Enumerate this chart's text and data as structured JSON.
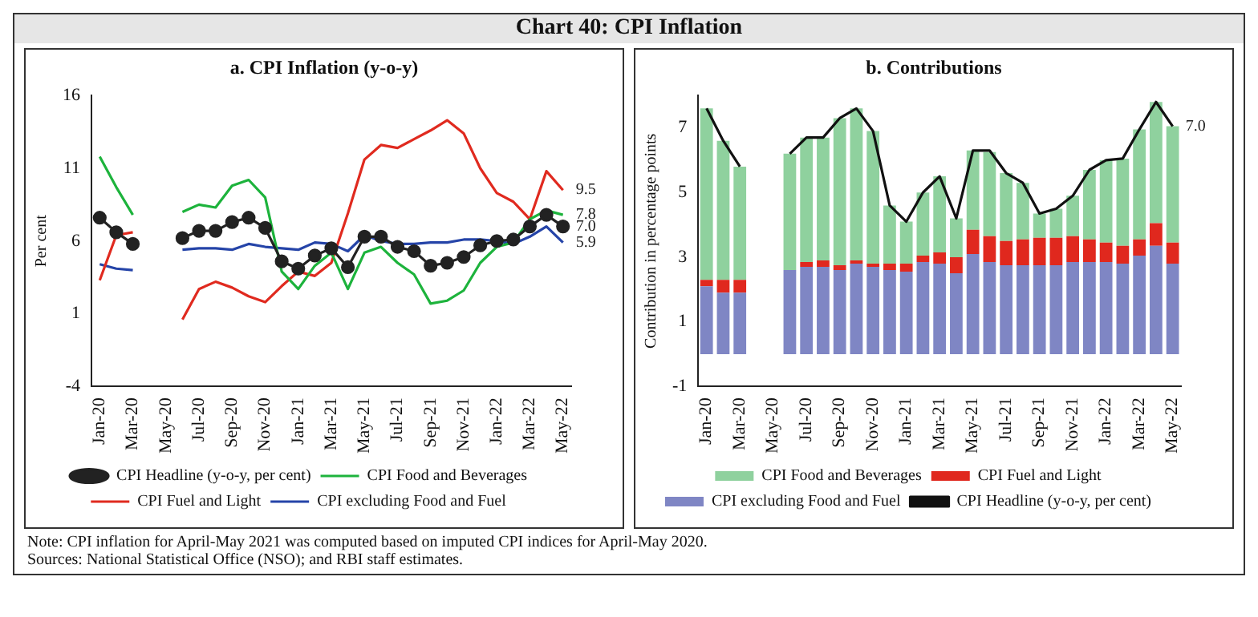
{
  "chart_data": [
    {
      "type": "line",
      "title": "Chart 40: CPI Inflation",
      "subtitle": "a. CPI  Inflation (y-o-y)",
      "ylabel": "Per cent",
      "categories": [
        "Jan-20",
        null,
        "Mar-20",
        null,
        "May-20",
        null,
        "Jul-20",
        null,
        "Sep-20",
        null,
        "Nov-20",
        null,
        "Jan-21",
        null,
        "Mar-21",
        null,
        "May-21",
        null,
        "Jul-21",
        null,
        "Sep-21",
        null,
        "Nov-21",
        null,
        "Jan-22",
        null,
        "Mar-22",
        null,
        "May-22"
      ],
      "series": [
        {
          "name": "CPI Headline (y-o-y, per cent)",
          "color": "#222222",
          "marker": "circle",
          "values": [
            7.6,
            6.6,
            5.8,
            null,
            null,
            6.2,
            6.7,
            6.7,
            7.3,
            7.6,
            6.9,
            4.6,
            4.1,
            5.0,
            5.5,
            4.2,
            6.3,
            6.3,
            5.6,
            5.3,
            4.3,
            4.5,
            4.9,
            5.7,
            6.0,
            6.1,
            7.0,
            7.8,
            7.0
          ]
        },
        {
          "name": "CPI Food and Beverages",
          "color": "#1db33c",
          "marker": "none",
          "values": [
            11.8,
            9.7,
            7.8,
            null,
            null,
            8.0,
            8.5,
            8.3,
            9.8,
            10.2,
            9.0,
            3.9,
            2.7,
            4.3,
            5.2,
            2.7,
            5.2,
            5.6,
            4.5,
            3.7,
            1.7,
            1.9,
            2.6,
            4.5,
            5.6,
            5.9,
            7.5,
            8.1,
            7.8
          ]
        },
        {
          "name": "CPI Fuel and Light",
          "color": "#e02a1f",
          "marker": "none",
          "values": [
            3.3,
            6.4,
            6.6,
            null,
            null,
            0.6,
            2.7,
            3.2,
            2.8,
            2.2,
            1.8,
            2.9,
            3.9,
            3.6,
            4.5,
            7.9,
            11.6,
            12.6,
            12.4,
            13.0,
            13.6,
            14.3,
            13.4,
            11.0,
            9.3,
            8.7,
            7.5,
            10.8,
            9.5
          ]
        },
        {
          "name": "CPI excluding Food and Fuel",
          "color": "#2544a8",
          "marker": "none",
          "values": [
            4.4,
            4.1,
            4.0,
            null,
            null,
            5.4,
            5.5,
            5.5,
            5.4,
            5.8,
            5.6,
            5.5,
            5.4,
            5.9,
            5.8,
            5.3,
            6.4,
            6.0,
            5.8,
            5.8,
            5.9,
            5.9,
            6.1,
            6.1,
            6.0,
            5.8,
            6.3,
            7.0,
            5.9
          ]
        }
      ],
      "ylim": [
        -4,
        16
      ],
      "yticks": [
        -4,
        1,
        6,
        11,
        16
      ],
      "grid": false,
      "legend": "bottom",
      "annotations": [
        {
          "text": "9.5",
          "x": "May-22",
          "y": 9.5
        },
        {
          "text": "7.8",
          "x": "May-22",
          "y": 7.8
        },
        {
          "text": "7.0",
          "x": "May-22",
          "y": 7.0
        },
        {
          "text": "5.9",
          "x": "May-22",
          "y": 5.9
        }
      ]
    },
    {
      "type": "bar",
      "title": "b. Contributions",
      "ylabel": "Contribution in percentage points",
      "stacked": true,
      "categories": [
        "Jan-20",
        null,
        "Mar-20",
        null,
        "May-20",
        null,
        "Jul-20",
        null,
        "Sep-20",
        null,
        "Nov-20",
        null,
        "Jan-21",
        null,
        "Mar-21",
        null,
        "May-21",
        null,
        "Jul-21",
        null,
        "Sep-21",
        null,
        "Nov-21",
        null,
        "Jan-22",
        null,
        "Mar-22",
        null,
        "May-22"
      ],
      "series": [
        {
          "name": "CPI excluding Food and Fuel",
          "color": "#7f86c4",
          "values": [
            2.1,
            1.9,
            1.9,
            null,
            null,
            2.6,
            2.7,
            2.7,
            2.6,
            2.8,
            2.7,
            2.6,
            2.55,
            2.85,
            2.8,
            2.5,
            3.1,
            2.85,
            2.75,
            2.75,
            2.75,
            2.75,
            2.85,
            2.85,
            2.85,
            2.8,
            3.05,
            3.35,
            2.8
          ]
        },
        {
          "name": "CPI Fuel and Light",
          "color": "#e0281e",
          "values": [
            0.2,
            0.4,
            0.4,
            null,
            null,
            0,
            0.15,
            0.2,
            0.15,
            0.1,
            0.1,
            0.2,
            0.25,
            0.2,
            0.35,
            0.5,
            0.75,
            0.8,
            0.75,
            0.8,
            0.85,
            0.85,
            0.8,
            0.7,
            0.6,
            0.55,
            0.5,
            0.7,
            0.65
          ]
        },
        {
          "name": "CPI Food and Beverages",
          "color": "#8fd19e",
          "values": [
            5.3,
            4.3,
            3.5,
            null,
            null,
            3.6,
            3.85,
            3.8,
            4.55,
            4.7,
            4.1,
            1.8,
            1.3,
            1.95,
            2.35,
            1.2,
            2.45,
            2.6,
            2.1,
            1.75,
            0.75,
            0.9,
            1.25,
            2.15,
            2.55,
            2.7,
            3.4,
            3.75,
            3.6
          ]
        },
        {
          "name": "CPI Headline (y-o-y, per cent)",
          "type": "line",
          "color": "#111111",
          "values": [
            7.6,
            6.6,
            5.8,
            null,
            null,
            6.2,
            6.7,
            6.7,
            7.3,
            7.6,
            6.9,
            4.6,
            4.1,
            5.0,
            5.5,
            4.2,
            6.3,
            6.3,
            5.6,
            5.3,
            4.35,
            4.5,
            4.9,
            5.7,
            6.0,
            6.05,
            6.95,
            7.8,
            7.05
          ]
        }
      ],
      "ylim": [
        -1,
        8
      ],
      "yticks": [
        -1,
        1,
        3,
        5,
        7
      ],
      "grid": false,
      "legend": "bottom",
      "annotations": [
        {
          "text": "7.0",
          "x": "May-22",
          "y": 7.05
        },
        "Note: CPI inflation for April-May 2021 was computed based on imputed CPI indices for April-May 2020.",
        "Sources: National Statistical Office (NSO); and RBI staff estimates."
      ]
    }
  ]
}
